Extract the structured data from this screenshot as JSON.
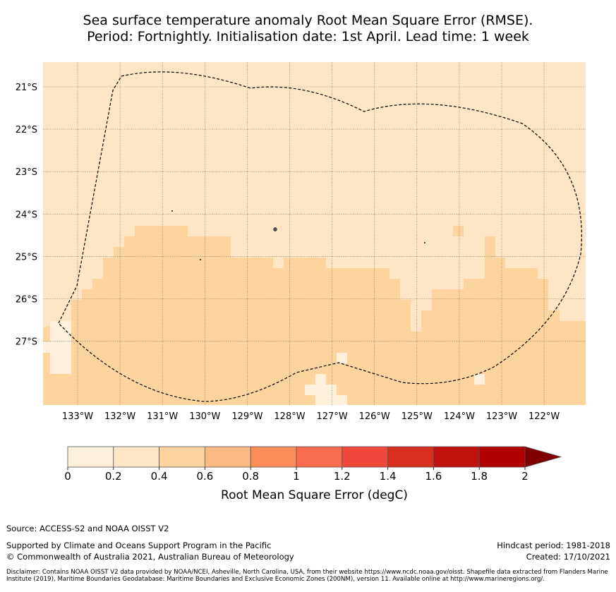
{
  "title": {
    "line1": "Sea surface temperature anomaly Root Mean Square Error (RMSE).",
    "line2": "Period: Fortnightly. Initialisation date: 1st April. Lead time: 1 week"
  },
  "map": {
    "lon_labels": [
      "133°W",
      "132°W",
      "131°W",
      "130°W",
      "129°W",
      "128°W",
      "127°W",
      "126°W",
      "125°W",
      "124°W",
      "123°W",
      "122°W"
    ],
    "lat_labels": [
      "21°S",
      "22°S",
      "23°S",
      "24°S",
      "25°S",
      "26°S",
      "27°S"
    ],
    "boundary_style": "dashed black line (EEZ)",
    "dominant_values": {
      "north": "0.2-0.4",
      "south": "0.4-0.6",
      "patches": "0-0.2"
    }
  },
  "colorbar": {
    "tick_labels": [
      "0",
      "0.2",
      "0.4",
      "0.6",
      "0.8",
      "1",
      "1.2",
      "1.4",
      "1.6",
      "1.8",
      "2"
    ],
    "colors": [
      "#fff0dc",
      "#fee5c5",
      "#fdd49e",
      "#fdb982",
      "#fc8d59",
      "#f96c50",
      "#f0483b",
      "#d7301f",
      "#c2120f",
      "#b00000",
      "#7f0000"
    ],
    "extend": "max",
    "label": "Root Mean Square Error (degC)"
  },
  "footer": {
    "source": "Source: ACCESS-S2 and NOAA OISST V2",
    "supported": "Supported by Climate and Oceans Support Program in the Pacific",
    "copyright": "© Commonwealth of Australia 2021, Australian Bureau of Meteorology",
    "hindcast": "Hindcast period: 1981-2018",
    "created": "Created: 17/10/2021",
    "disclaimer": "Disclaimer: Contains NOAA OISST V2 data provided by NOAA/NCEI, Asheville, North Carolina, USA, from their website https://www.ncdc.noaa.gov/oisst. Shapefile data extracted from Flanders Marine Institute (2019), Maritime Boundaries Geodatabase: Maritime Boundaries and Exclusive Economic Zones (200NM), version 11. Available online at http://www.marineregions.org/."
  }
}
